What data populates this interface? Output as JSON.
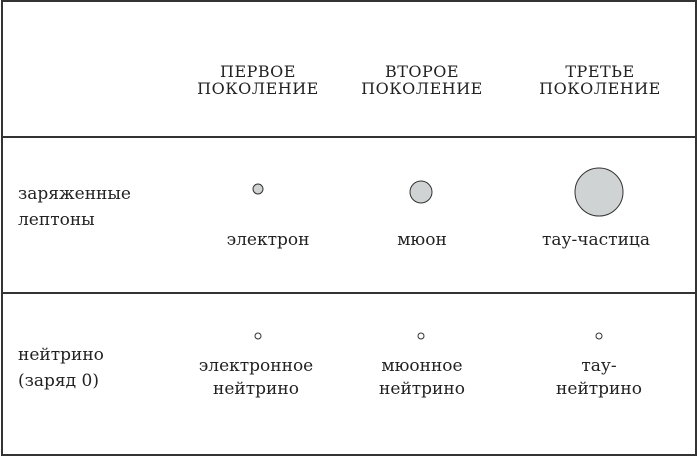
{
  "headers": [
    {
      "line1": "ПЕРВОЕ",
      "line2": "ПОКОЛЕНИЕ"
    },
    {
      "line1": "ВТОРОЕ",
      "line2": "ПОКОЛЕНИЕ"
    },
    {
      "line1": "ТРЕТЬЕ",
      "line2": "ПОКОЛЕНИЕ"
    }
  ],
  "rows": [
    {
      "label1": "заряженные",
      "label2": "лептоны",
      "particles": [
        {
          "name1": "электрон",
          "name2": ""
        },
        {
          "name1": "мюон",
          "name2": ""
        },
        {
          "name1": "тау-частица",
          "name2": ""
        }
      ]
    },
    {
      "label1": "нейтрино",
      "label2": "(заряд 0)",
      "particles": [
        {
          "name1": "электронное",
          "name2": "нейтрино"
        },
        {
          "name1": "мюонное",
          "name2": "нейтрино"
        },
        {
          "name1": "тау-",
          "name2": "нейтрино"
        }
      ]
    }
  ],
  "colors": {
    "charged_fill": "#d0d3d3",
    "neutrino_fill": "#ffffff",
    "line": "#333333"
  }
}
